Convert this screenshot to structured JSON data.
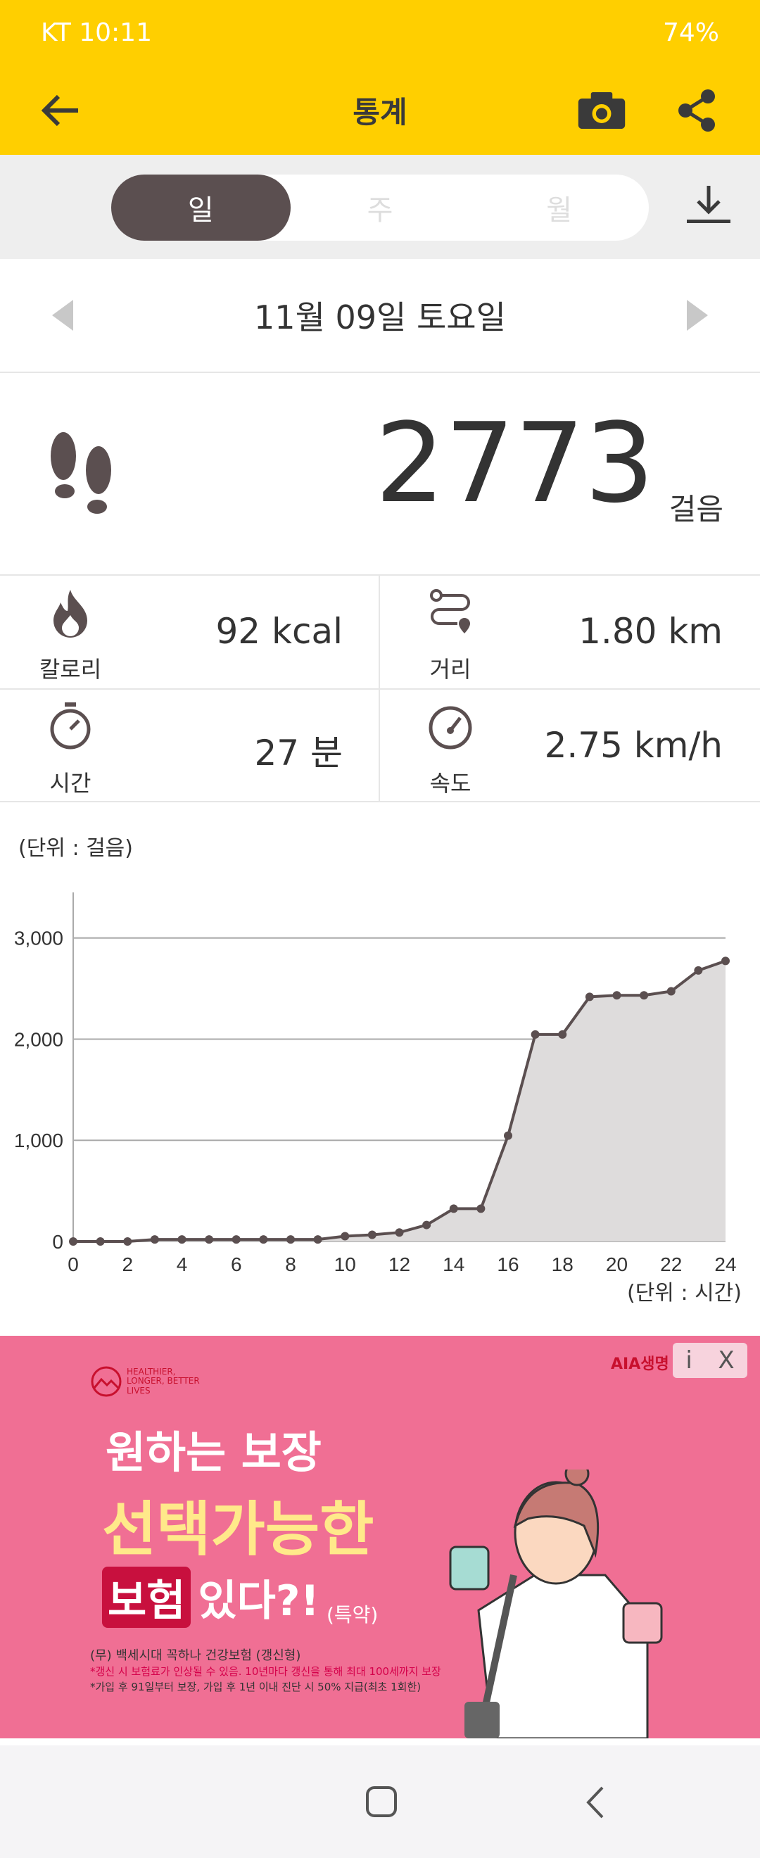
{
  "status_bar": {
    "carrier_time": "KT 10:11",
    "right": "74%"
  },
  "toolbar": {
    "title": "통계",
    "back_icon": "arrow-left-icon",
    "camera_icon": "camera-icon",
    "share_icon": "share-icon"
  },
  "period_tabs": [
    {
      "label": "일",
      "active": true
    },
    {
      "label": "주",
      "active": false
    },
    {
      "label": "월",
      "active": false
    }
  ],
  "date": {
    "label": "11월 09일 토요일"
  },
  "steps": {
    "value": "2773",
    "unit": "걸음"
  },
  "stats": [
    {
      "label": "칼로리",
      "value": "92 kcal",
      "icon": "flame-icon"
    },
    {
      "label": "거리",
      "value": "1.80 km",
      "icon": "route-icon"
    },
    {
      "label": "시간",
      "value": "27 분",
      "icon": "stopwatch-icon"
    },
    {
      "label": "속도",
      "value": "2.75 km/h",
      "icon": "speedometer-icon"
    }
  ],
  "chart_data": {
    "type": "area",
    "ylabel": "(단위 : 걸음)",
    "xlabel": "(단위 : 시간)",
    "x": [
      0,
      1,
      2,
      3,
      4,
      5,
      6,
      7,
      8,
      9,
      10,
      11,
      12,
      13,
      14,
      15,
      16,
      17,
      18,
      19,
      20,
      21,
      22,
      23,
      24
    ],
    "values": [
      0,
      0,
      0,
      20,
      20,
      20,
      20,
      20,
      20,
      20,
      52,
      66,
      89,
      163,
      324,
      324,
      1046,
      2046,
      2046,
      2418,
      2433,
      2433,
      2473,
      2679,
      2773
    ],
    "xticks": [
      "0",
      "2",
      "4",
      "6",
      "8",
      "10",
      "12",
      "14",
      "16",
      "18",
      "20",
      "22",
      "24"
    ],
    "yticks": [
      "0",
      "1,000",
      "2,000",
      "3,000"
    ],
    "xlim": [
      0,
      24
    ],
    "ylim": [
      0,
      3450
    ],
    "grid": true,
    "colors": {
      "line": "#5b4f50",
      "fill": "#dedcdc"
    }
  },
  "ad": {
    "brand": "AIA생명",
    "tagline": "HEALTHIER, LONGER, BETTER LIVES",
    "line1": "원하는 보장",
    "line2": "선택가능한",
    "line3a": "보험",
    "line3b": "있다?!",
    "line3c": "(특약)",
    "product": "(무) 백세시대 꼭하나 건강보험 (갱신형)",
    "note1": "*갱신 시 보험료가 인상될 수 있음. 10년마다 갱신을 통해 최대 100세까지 보장",
    "note2": "*가입 후 91일부터 보장, 가입 후 1년 이내 진단 시 50% 지급(최초 1회한)",
    "info_label": "i",
    "close_label": "X"
  },
  "colors": {
    "accent": "#FFCF00",
    "active_tab": "#5b4f50",
    "ad_bg": "#F06F94"
  }
}
